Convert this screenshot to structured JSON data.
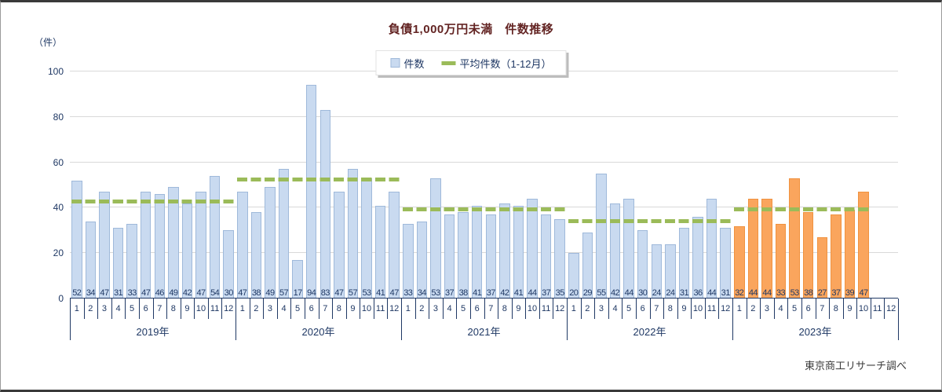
{
  "title": "負債1,000万円未満　件数推移",
  "y_axis": {
    "unit": "（件）",
    "ticks": [
      0,
      20,
      40,
      60,
      80,
      100
    ],
    "max": 100
  },
  "legend": {
    "bar_label": "件数",
    "line_label": "平均件数（1-12月）"
  },
  "source_note": "東京商工リサーチ調べ",
  "colors": {
    "bar_past_fill": "#C9DAF0",
    "bar_past_border": "#9FB9DA",
    "bar_current_fill": "#FAA55D",
    "bar_current_border": "#F0923F",
    "average_line": "#9BBB59",
    "axis_text": "#1F3864",
    "title_text": "#632423",
    "gridline": "#D9D9D9"
  },
  "chart_data": {
    "type": "bar",
    "title": "負債1,000万円未満　件数推移",
    "ylabel": "（件）",
    "ylim": [
      0,
      100
    ],
    "grid": true,
    "legend_position": "top-center",
    "month_labels": [
      "1",
      "2",
      "3",
      "4",
      "5",
      "6",
      "7",
      "8",
      "9",
      "10",
      "11",
      "12"
    ],
    "years": [
      {
        "label": "2019年",
        "bar_color": "past",
        "values": [
          52,
          34,
          47,
          31,
          33,
          47,
          46,
          49,
          42,
          47,
          54,
          30
        ],
        "average": 42.7
      },
      {
        "label": "2020年",
        "bar_color": "past",
        "values": [
          47,
          38,
          49,
          57,
          17,
          94,
          83,
          47,
          57,
          53,
          41,
          47
        ],
        "average": 52.5
      },
      {
        "label": "2021年",
        "bar_color": "past",
        "values": [
          33,
          34,
          53,
          37,
          38,
          41,
          37,
          42,
          41,
          44,
          37,
          35
        ],
        "average": 39.3
      },
      {
        "label": "2022年",
        "bar_color": "past",
        "values": [
          20,
          29,
          55,
          42,
          44,
          30,
          24,
          24,
          31,
          36,
          44,
          31
        ],
        "average": 34.2
      },
      {
        "label": "2023年",
        "bar_color": "current",
        "values": [
          32,
          44,
          44,
          33,
          53,
          38,
          27,
          37,
          39,
          47,
          null,
          null
        ],
        "average": 39.4
      }
    ]
  }
}
